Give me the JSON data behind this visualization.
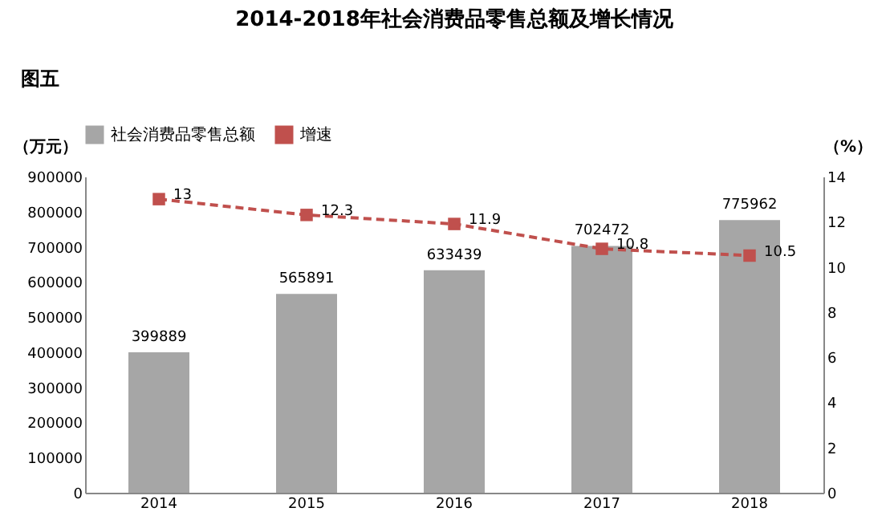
{
  "chart_data": {
    "type": "bar",
    "title": "2014-2018年社会消费品零售总额及增长情况",
    "annotations": [
      "图五"
    ],
    "ylabel": "（万元）",
    "y2label": "（%）",
    "categories": [
      "2014",
      "2015",
      "2016",
      "2017",
      "2018"
    ],
    "series": [
      {
        "name": "社会消费品零售总额",
        "color": "#a6a6a6",
        "values": [
          399889,
          565891,
          633439,
          702472,
          775962
        ]
      },
      {
        "name": "增速",
        "type": "line",
        "axis": "y2",
        "color": "#c0504d",
        "values": [
          13,
          12.3,
          11.9,
          10.8,
          10.5
        ],
        "marker": "square",
        "line_style": "dashed"
      }
    ],
    "ylim": [
      0,
      900000
    ],
    "yticks": [
      0,
      100000,
      200000,
      300000,
      400000,
      500000,
      600000,
      700000,
      800000,
      900000
    ],
    "y2lim": [
      0,
      14
    ],
    "y2ticks": [
      0,
      2,
      4,
      6,
      8,
      10,
      12,
      14
    ],
    "data_labels": true,
    "legend": "top",
    "grid": false
  }
}
